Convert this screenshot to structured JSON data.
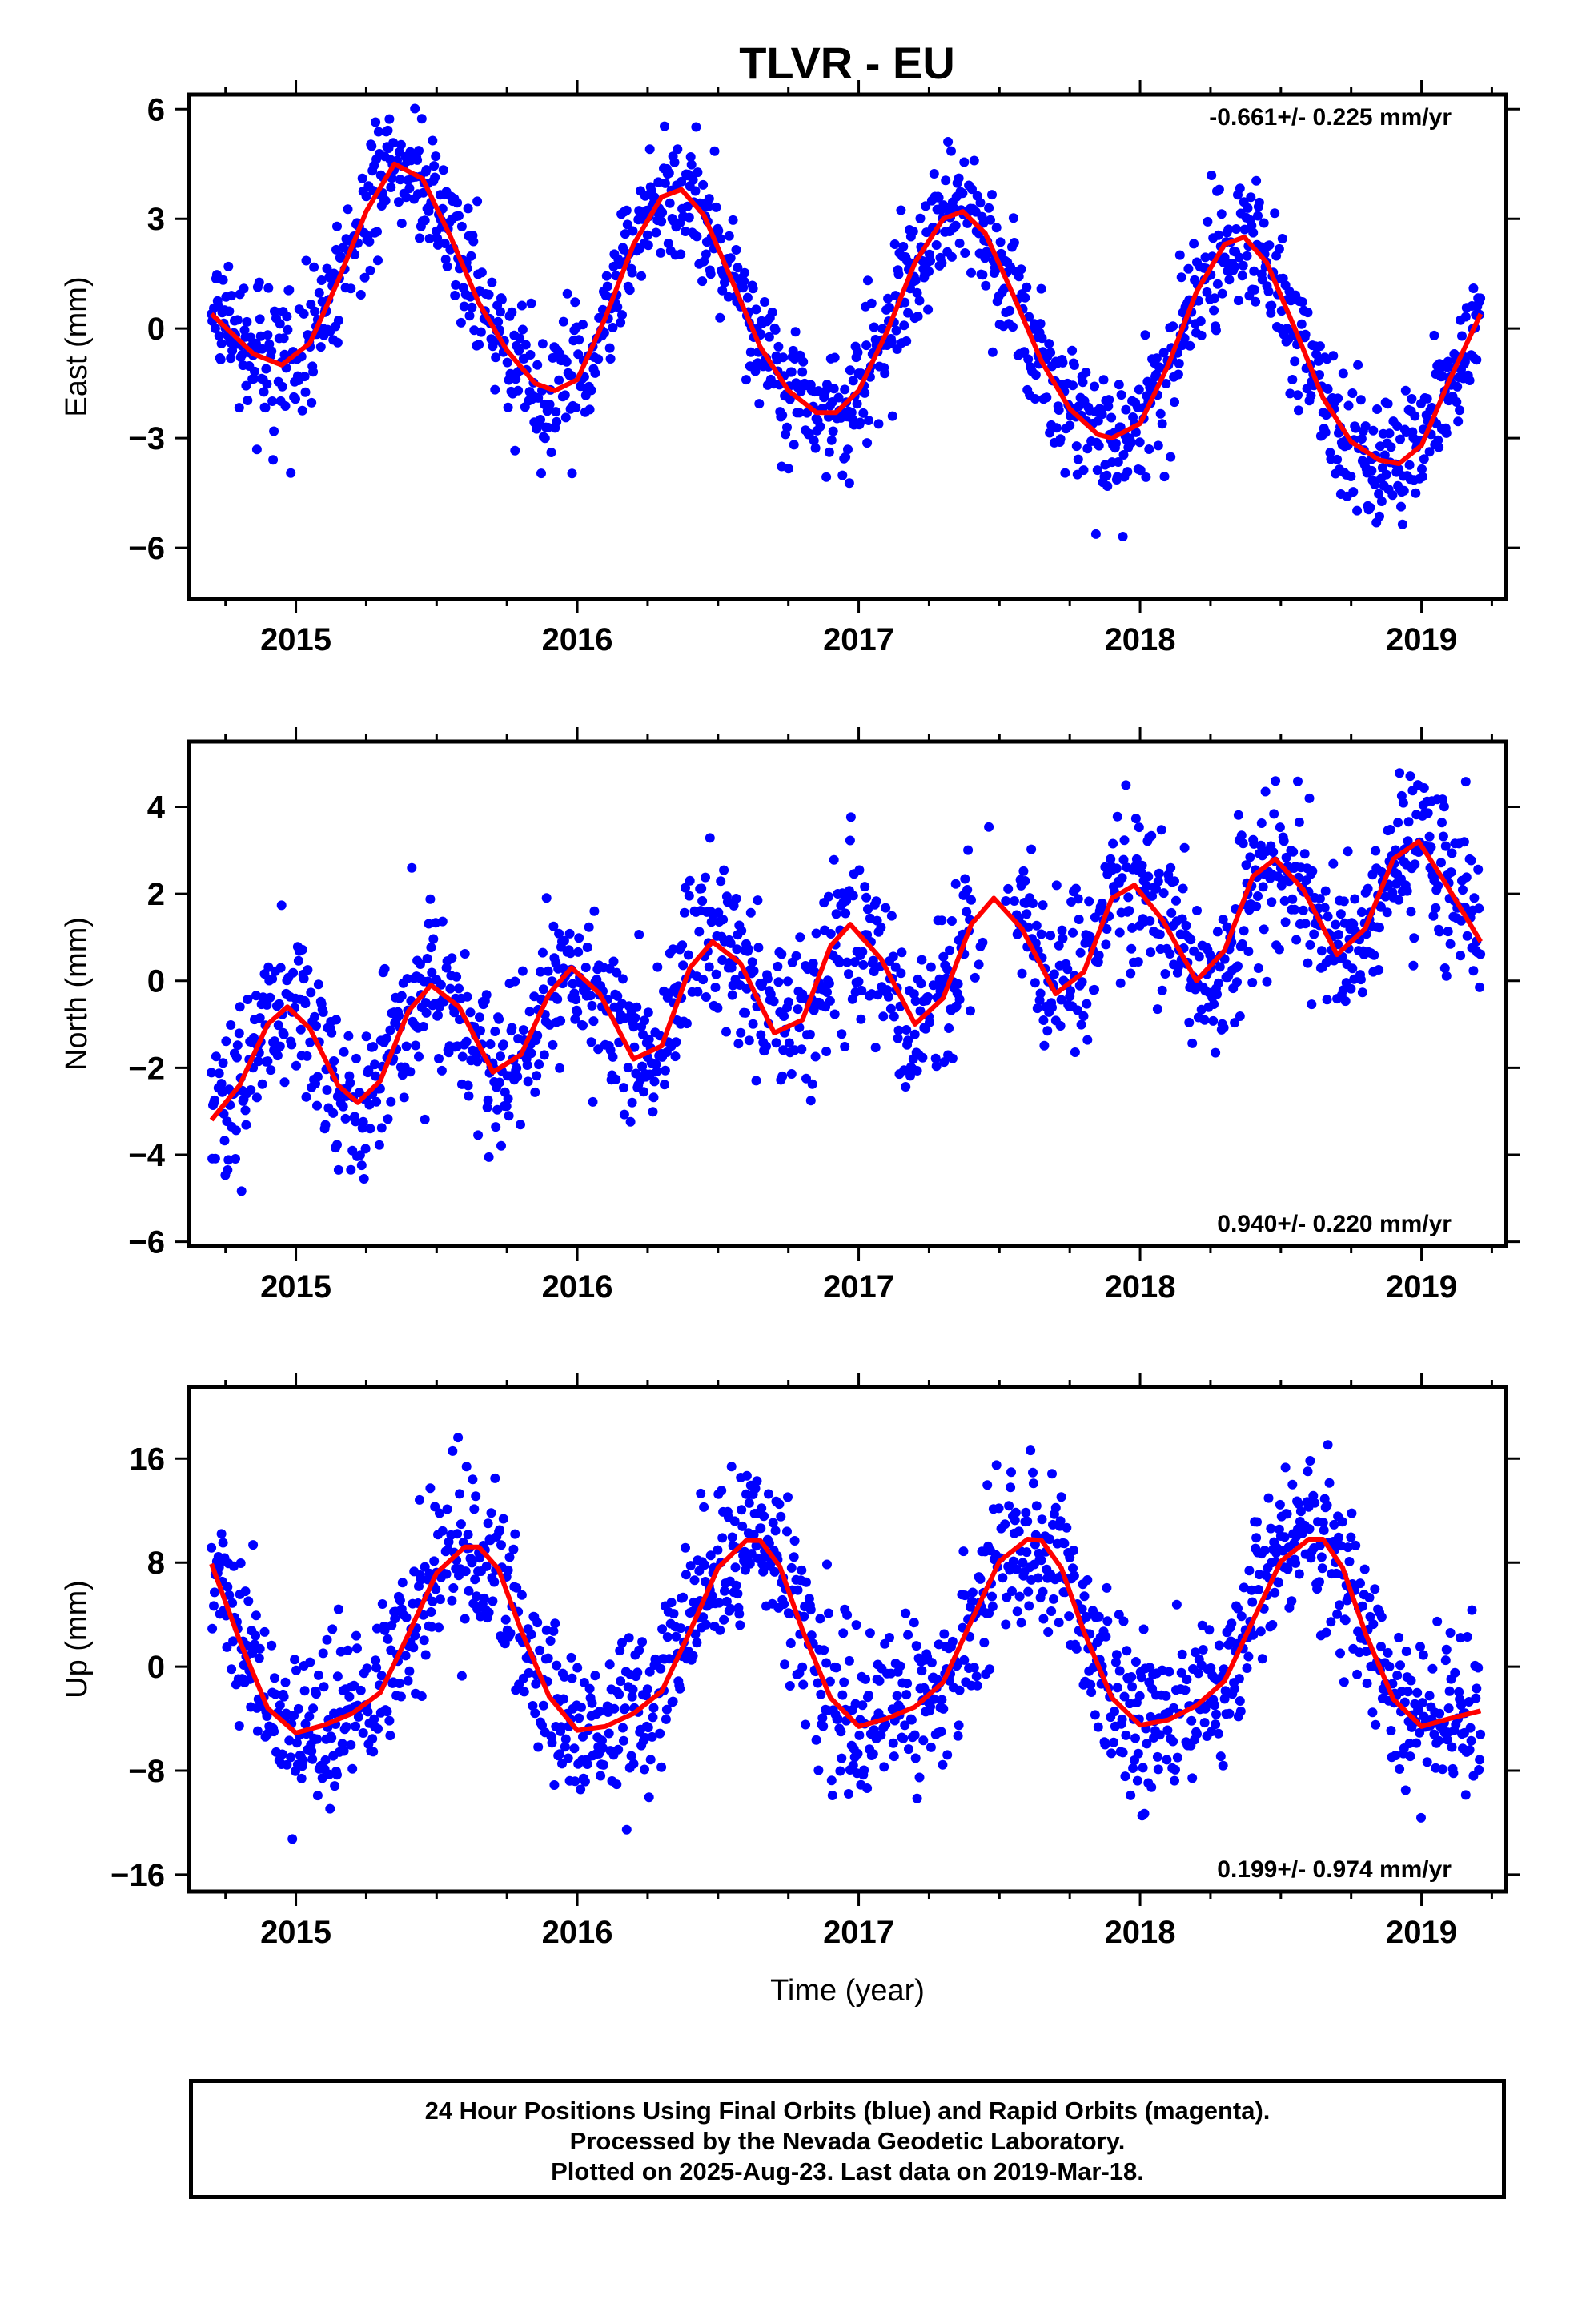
{
  "title": "TLVR - EU",
  "colors": {
    "final_orbits": "#0000ff",
    "rapid_orbits": "#ff00ff",
    "model": "#ff0000"
  },
  "chart_data": [
    {
      "type": "scatter",
      "ylabel": "East (mm)",
      "xlabel": "",
      "rate_label": "-0.661+/- 0.225 mm/yr",
      "rate_position": "top-right",
      "xlim": [
        2014.62,
        2019.3
      ],
      "ylim": [
        -7.4,
        6.4
      ],
      "xticks": [
        2015,
        2016,
        2017,
        2018,
        2019
      ],
      "xtick_labels": [
        "2015",
        "2016",
        "2017",
        "2018",
        "2019"
      ],
      "yticks": [
        -6,
        -3,
        0,
        3,
        6
      ],
      "ytick_labels": [
        "−6",
        "−3",
        "0",
        "3",
        "6"
      ],
      "grid": false,
      "model_curve": {
        "x": [
          2014.7,
          2014.85,
          2014.95,
          2015.05,
          2015.15,
          2015.25,
          2015.35,
          2015.45,
          2015.55,
          2015.65,
          2015.75,
          2015.85,
          2015.92,
          2016.0,
          2016.1,
          2016.2,
          2016.3,
          2016.37,
          2016.45,
          2016.55,
          2016.65,
          2016.75,
          2016.85,
          2016.92,
          2017.0,
          2017.1,
          2017.2,
          2017.3,
          2017.37,
          2017.45,
          2017.55,
          2017.65,
          2017.75,
          2017.85,
          2017.9,
          2018.0,
          2018.1,
          2018.2,
          2018.3,
          2018.37,
          2018.45,
          2018.55,
          2018.65,
          2018.75,
          2018.85,
          2018.92,
          2019.0,
          2019.1,
          2019.21
        ],
        "y": [
          0.4,
          -0.7,
          -1.0,
          -0.4,
          1.3,
          3.2,
          4.5,
          4.1,
          2.5,
          0.7,
          -0.6,
          -1.5,
          -1.7,
          -1.4,
          0.3,
          2.3,
          3.6,
          3.8,
          3.1,
          1.3,
          -0.5,
          -1.7,
          -2.3,
          -2.3,
          -1.7,
          -0.1,
          1.8,
          3.0,
          3.2,
          2.6,
          0.9,
          -0.9,
          -2.2,
          -2.9,
          -3.0,
          -2.6,
          -1.0,
          1.0,
          2.3,
          2.5,
          1.8,
          0.0,
          -1.9,
          -3.1,
          -3.6,
          -3.7,
          -3.2,
          -1.4,
          0.4
        ]
      }
    },
    {
      "type": "scatter",
      "ylabel": "North (mm)",
      "xlabel": "",
      "rate_label": "0.940+/- 0.220 mm/yr",
      "rate_position": "bottom-right",
      "xlim": [
        2014.62,
        2019.3
      ],
      "ylim": [
        -6.1,
        5.5
      ],
      "xticks": [
        2015,
        2016,
        2017,
        2018,
        2019
      ],
      "xtick_labels": [
        "2015",
        "2016",
        "2017",
        "2018",
        "2019"
      ],
      "yticks": [
        -6,
        -4,
        -2,
        0,
        2,
        4
      ],
      "ytick_labels": [
        "−6",
        "−4",
        "−2",
        "0",
        "2",
        "4"
      ],
      "grid": false,
      "model_curve": {
        "x": [
          2014.7,
          2014.8,
          2014.9,
          2014.97,
          2015.05,
          2015.15,
          2015.22,
          2015.3,
          2015.4,
          2015.48,
          2015.58,
          2015.7,
          2015.8,
          2015.9,
          2015.98,
          2016.08,
          2016.2,
          2016.3,
          2016.4,
          2016.48,
          2016.58,
          2016.7,
          2016.8,
          2016.9,
          2016.97,
          2017.08,
          2017.2,
          2017.3,
          2017.4,
          2017.48,
          2017.58,
          2017.7,
          2017.8,
          2017.9,
          2017.98,
          2018.08,
          2018.2,
          2018.3,
          2018.4,
          2018.48,
          2018.58,
          2018.7,
          2018.8,
          2018.9,
          2018.99,
          2019.08,
          2019.21
        ],
        "y": [
          -3.2,
          -2.4,
          -1.0,
          -0.6,
          -1.1,
          -2.4,
          -2.8,
          -2.3,
          -0.7,
          -0.1,
          -0.6,
          -2.1,
          -1.7,
          -0.3,
          0.3,
          -0.3,
          -1.8,
          -1.5,
          0.3,
          0.9,
          0.4,
          -1.2,
          -0.9,
          0.8,
          1.3,
          0.5,
          -1.0,
          -0.4,
          1.3,
          1.9,
          1.2,
          -0.3,
          0.2,
          1.9,
          2.2,
          1.4,
          0.0,
          0.7,
          2.4,
          2.8,
          2.1,
          0.6,
          1.2,
          2.8,
          3.2,
          2.3,
          0.9
        ]
      }
    },
    {
      "type": "scatter",
      "ylabel": "Up (mm)",
      "xlabel": "Time (year)",
      "rate_label": "0.199+/- 0.974 mm/yr",
      "rate_position": "bottom-right",
      "xlim": [
        2014.62,
        2019.3
      ],
      "ylim": [
        -17.3,
        21.5
      ],
      "xticks": [
        2015,
        2016,
        2017,
        2018,
        2019
      ],
      "xtick_labels": [
        "2015",
        "2016",
        "2017",
        "2018",
        "2019"
      ],
      "yticks": [
        -16,
        -8,
        0,
        8,
        16
      ],
      "ytick_labels": [
        "−16",
        "−8",
        "0",
        "8",
        "16"
      ],
      "grid": false,
      "model_curve": {
        "x": [
          2014.7,
          2014.8,
          2014.9,
          2015.0,
          2015.1,
          2015.2,
          2015.3,
          2015.4,
          2015.5,
          2015.6,
          2015.65,
          2015.72,
          2015.8,
          2015.9,
          2016.0,
          2016.1,
          2016.2,
          2016.3,
          2016.4,
          2016.5,
          2016.6,
          2016.65,
          2016.72,
          2016.8,
          2016.9,
          2017.0,
          2017.1,
          2017.2,
          2017.3,
          2017.4,
          2017.5,
          2017.6,
          2017.65,
          2017.72,
          2017.8,
          2017.9,
          2018.0,
          2018.1,
          2018.2,
          2018.3,
          2018.4,
          2018.5,
          2018.6,
          2018.65,
          2018.72,
          2018.8,
          2018.9,
          2019.0,
          2019.1,
          2019.21
        ],
        "y": [
          7.9,
          2.0,
          -3.2,
          -5.1,
          -4.5,
          -3.6,
          -2.0,
          2.5,
          7.2,
          9.2,
          9.2,
          7.5,
          2.8,
          -2.3,
          -4.9,
          -4.6,
          -3.6,
          -1.9,
          2.7,
          7.6,
          9.7,
          9.7,
          7.7,
          2.8,
          -2.4,
          -4.6,
          -4.0,
          -3.1,
          -1.2,
          3.5,
          8.1,
          9.8,
          9.7,
          7.6,
          2.7,
          -2.4,
          -4.5,
          -4.1,
          -3.0,
          -1.1,
          3.5,
          8.1,
          9.8,
          9.8,
          7.6,
          2.6,
          -2.5,
          -4.6,
          -4.0,
          -3.4
        ]
      }
    }
  ],
  "caption": {
    "line1": "24 Hour Positions Using Final Orbits (blue) and Rapid Orbits (magenta).",
    "line2": "Processed by the Nevada Geodetic Laboratory.",
    "line3": "Plotted on 2025-Aug-23. Last data on 2019-Mar-18."
  }
}
